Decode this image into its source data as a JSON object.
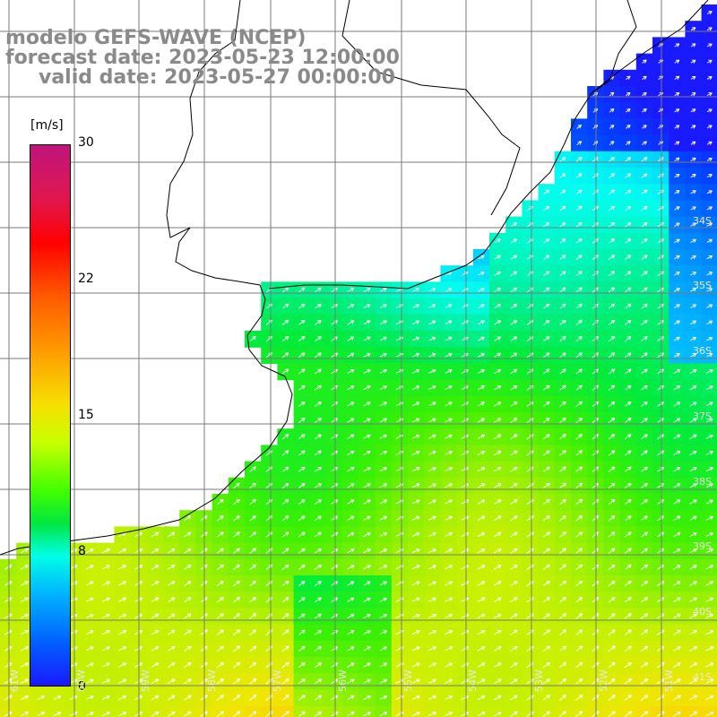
{
  "title": {
    "line1": "modelo GEFS-WAVE (NCEP)",
    "line2": "forecast date: 2023-05-23 12:00:00",
    "line3": "valid date: 2023-05-27 00:00:00"
  },
  "colorbar": {
    "units": "[m/s]",
    "ticks": [
      "30",
      "22",
      "15",
      "8",
      "0"
    ],
    "colors": [
      "#c0147c",
      "#ff0000",
      "#ff9400",
      "#f6e000",
      "#40ff00",
      "#00ffe6",
      "#0060ff",
      "#1a1aff"
    ]
  },
  "lat_labels": [
    "34S",
    "35S",
    "36S",
    "37S",
    "38S",
    "39S",
    "40S",
    "41S"
  ],
  "lon_labels": [
    "61W",
    "60W",
    "59W",
    "58W",
    "57W",
    "56W",
    "55W",
    "54W",
    "53W",
    "52W",
    "51W"
  ],
  "colors": {
    "land": "#ffffff",
    "coast": "#000000",
    "grid": "#7a7a7a",
    "arrow": "#ffffff"
  }
}
